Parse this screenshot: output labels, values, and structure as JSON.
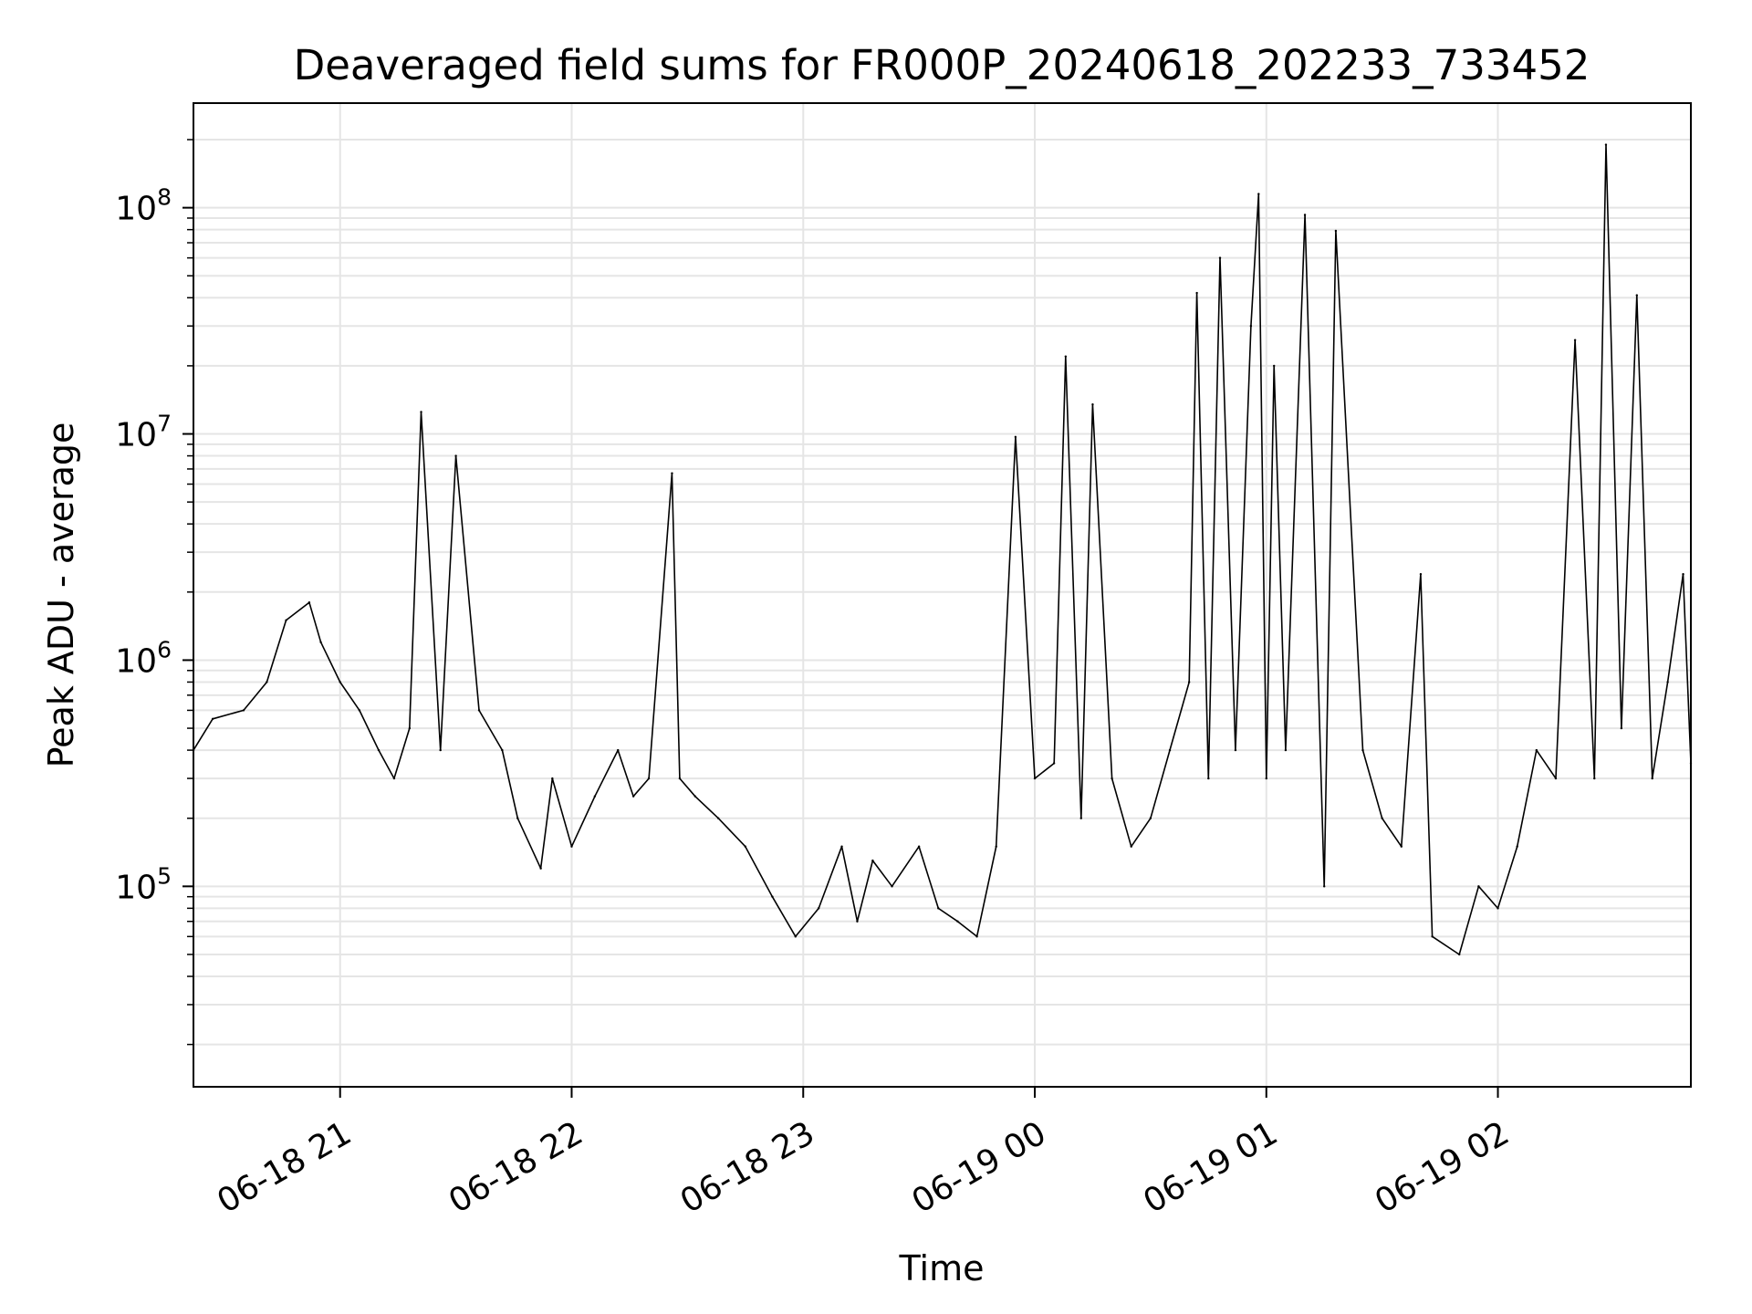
{
  "chart_data": {
    "type": "line",
    "title": "Deaveraged field sums for FR000P_20240618_202233_733452",
    "xlabel": "Time",
    "ylabel": "Peak ADU - average",
    "yscale": "log",
    "xlim": [
      "2024-06-18 20:22",
      "2024-06-19 02:50"
    ],
    "ylim": [
      13000,
      290000000
    ],
    "x_ticks": [
      {
        "value": "2024-06-18 21:00",
        "label": "06-18 21"
      },
      {
        "value": "2024-06-18 22:00",
        "label": "06-18 22"
      },
      {
        "value": "2024-06-18 23:00",
        "label": "06-18 23"
      },
      {
        "value": "2024-06-19 00:00",
        "label": "06-19 00"
      },
      {
        "value": "2024-06-19 01:00",
        "label": "06-19 01"
      },
      {
        "value": "2024-06-19 02:00",
        "label": "06-19 02"
      }
    ],
    "y_ticks": [
      {
        "value": 100000,
        "base": "10",
        "exp": "5"
      },
      {
        "value": 1000000,
        "base": "10",
        "exp": "6"
      },
      {
        "value": 10000000,
        "base": "10",
        "exp": "7"
      },
      {
        "value": 100000000,
        "base": "10",
        "exp": "8"
      }
    ],
    "grid": true,
    "line_color": "#000000",
    "grid_color": "#e5e5e5",
    "series": [
      {
        "x": [
          "2024-06-18 20:22",
          "2024-06-18 20:27",
          "2024-06-18 20:35",
          "2024-06-18 20:41",
          "2024-06-18 20:46",
          "2024-06-18 20:52",
          "2024-06-18 20:55",
          "2024-06-18 21:00",
          "2024-06-18 21:05",
          "2024-06-18 21:10",
          "2024-06-18 21:14",
          "2024-06-18 21:18",
          "2024-06-18 21:21",
          "2024-06-18 21:26",
          "2024-06-18 21:30",
          "2024-06-18 21:36",
          "2024-06-18 21:42",
          "2024-06-18 21:46",
          "2024-06-18 21:52",
          "2024-06-18 21:55",
          "2024-06-18 22:00",
          "2024-06-18 22:06",
          "2024-06-18 22:12",
          "2024-06-18 22:16",
          "2024-06-18 22:20",
          "2024-06-18 22:26",
          "2024-06-18 22:28",
          "2024-06-18 22:32",
          "2024-06-18 22:38",
          "2024-06-18 22:45",
          "2024-06-18 22:52",
          "2024-06-18 22:58",
          "2024-06-18 23:04",
          "2024-06-18 23:10",
          "2024-06-18 23:14",
          "2024-06-18 23:18",
          "2024-06-18 23:23",
          "2024-06-18 23:30",
          "2024-06-18 23:35",
          "2024-06-18 23:40",
          "2024-06-18 23:45",
          "2024-06-18 23:50",
          "2024-06-18 23:55",
          "2024-06-19 00:00",
          "2024-06-19 00:05",
          "2024-06-19 00:08",
          "2024-06-19 00:12",
          "2024-06-19 00:15",
          "2024-06-19 00:20",
          "2024-06-19 00:25",
          "2024-06-19 00:30",
          "2024-06-19 00:35",
          "2024-06-19 00:40",
          "2024-06-19 00:42",
          "2024-06-19 00:45",
          "2024-06-19 00:48",
          "2024-06-19 00:52",
          "2024-06-19 00:56",
          "2024-06-19 00:58",
          "2024-06-19 01:00",
          "2024-06-19 01:02",
          "2024-06-19 01:05",
          "2024-06-19 01:10",
          "2024-06-19 01:15",
          "2024-06-19 01:18",
          "2024-06-19 01:25",
          "2024-06-19 01:30",
          "2024-06-19 01:35",
          "2024-06-19 01:40",
          "2024-06-19 01:43",
          "2024-06-19 01:50",
          "2024-06-19 01:55",
          "2024-06-19 02:00",
          "2024-06-19 02:05",
          "2024-06-19 02:10",
          "2024-06-19 02:15",
          "2024-06-19 02:20",
          "2024-06-19 02:25",
          "2024-06-19 02:28",
          "2024-06-19 02:32",
          "2024-06-19 02:36",
          "2024-06-19 02:40",
          "2024-06-19 02:44",
          "2024-06-19 02:48",
          "2024-06-19 02:50"
        ],
        "y": [
          400000,
          550000,
          600000,
          800000,
          1500000,
          1800000,
          1200000,
          800000,
          600000,
          400000,
          300000,
          500000,
          12500000,
          400000,
          8000000,
          600000,
          400000,
          200000,
          120000,
          300000,
          150000,
          250000,
          400000,
          250000,
          300000,
          6700000,
          300000,
          250000,
          200000,
          150000,
          90000,
          60000,
          80000,
          150000,
          70000,
          130000,
          100000,
          150000,
          80000,
          70000,
          60000,
          150000,
          9700000,
          300000,
          350000,
          22000000,
          200000,
          13500000,
          300000,
          150000,
          200000,
          400000,
          800000,
          42000000,
          300000,
          60000000,
          400000,
          30000000,
          115000000,
          300000,
          20000000,
          400000,
          93000000,
          100000,
          79000000,
          400000,
          200000,
          150000,
          2400000,
          60000,
          50000,
          100000,
          80000,
          150000,
          400000,
          300000,
          26000000,
          300000,
          190000000,
          500000,
          41000000,
          300000,
          800000,
          2400000,
          350000
        ]
      }
    ]
  }
}
